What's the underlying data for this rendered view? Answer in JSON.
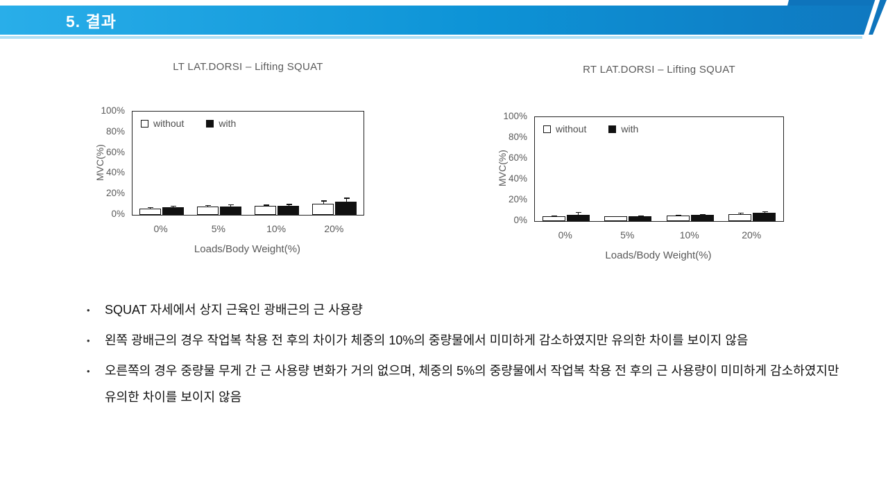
{
  "header": {
    "title": "5. 결과"
  },
  "colors": {
    "banner_gradient_left": "#29AEE9",
    "banner_gradient_mid": "#0D93D6",
    "banner_gradient_right": "#0F78C0",
    "banner_accent": "#0E74BC",
    "banner_underline": "#AEDFF5",
    "chart_text": "#595959",
    "bar_without_fill": "#FFFFFF",
    "bar_with_fill": "#111111"
  },
  "chart_data": [
    {
      "type": "bar",
      "title": "LT LAT.DORSI – Lifting SQUAT",
      "xlabel": "Loads/Body Weight(%)",
      "ylabel": "MVC(%)",
      "categories": [
        "0%",
        "5%",
        "10%",
        "20%"
      ],
      "yticks": [
        "100%",
        "80%",
        "60%",
        "40%",
        "20%",
        "0%"
      ],
      "ylim": [
        0,
        100
      ],
      "grid": false,
      "legend_position": "top-left-inside",
      "series": [
        {
          "name": "without",
          "fill": "white",
          "values": [
            6,
            8,
            8.5,
            10.5
          ],
          "errors": [
            2,
            2,
            2,
            4
          ]
        },
        {
          "name": "with",
          "fill": "black",
          "values": [
            7.5,
            8,
            9,
            12.5
          ],
          "errors": [
            1.5,
            2,
            1.5,
            4
          ]
        }
      ]
    },
    {
      "type": "bar",
      "title": "RT LAT.DORSI – Lifting SQUAT",
      "xlabel": "Loads/Body Weight(%)",
      "ylabel": "MVC(%)",
      "categories": [
        "0%",
        "5%",
        "10%",
        "20%"
      ],
      "yticks": [
        "100%",
        "80%",
        "60%",
        "40%",
        "20%",
        "0%"
      ],
      "ylim": [
        0,
        100
      ],
      "grid": false,
      "legend_position": "top-left-inside",
      "series": [
        {
          "name": "without",
          "fill": "white",
          "values": [
            4.5,
            4.5,
            5.5,
            6.5
          ],
          "errors": [
            1.5,
            1,
            1.5,
            2
          ]
        },
        {
          "name": "with",
          "fill": "black",
          "values": [
            6,
            4.5,
            6,
            8
          ],
          "errors": [
            3,
            1,
            1,
            1.5
          ]
        }
      ]
    }
  ],
  "bullets": [
    "SQUAT 자세에서 상지 근육인 광배근의 근 사용량",
    "왼쪽 광배근의 경우 작업복 착용 전 후의 차이가 체중의 10%의 중량물에서 미미하게 감소하였지만 유의한 차이를 보이지 않음",
    "오른쪽의 경우 중량물 무게 간 근 사용량 변화가 거의 없으며, 체중의 5%의 중량물에서 작업복 착용 전 후의 근 사용량이 미미하게 감소하였지만 유의한 차이를 보이지 않음"
  ]
}
